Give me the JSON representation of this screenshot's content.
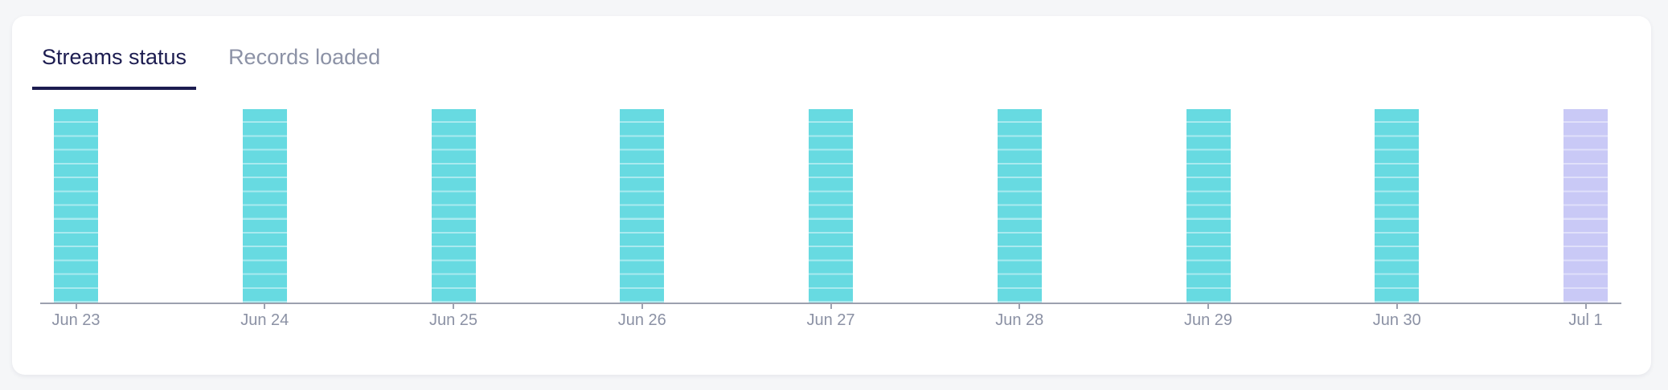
{
  "page": {
    "background_color": "#f5f6f8"
  },
  "tabs": [
    {
      "label": "Streams status",
      "active": true
    },
    {
      "label": "Records loaded",
      "active": false
    }
  ],
  "colors": {
    "active_tab": "#1c1c50",
    "inactive_tab": "#8c92a6",
    "axis": "#9ca1af",
    "label": "#8b91a4",
    "bar_success": "#67dae1",
    "bar_success_divider": "#a9eaef",
    "bar_running": "#c9c9f6",
    "bar_running_divider": "#e0e0fa"
  },
  "chart_data": {
    "type": "bar",
    "title": "",
    "xlabel": "",
    "ylabel": "",
    "categories": [
      "Jun 23",
      "Jun 24",
      "Jun 25",
      "Jun 26",
      "Jun 27",
      "Jun 28",
      "Jun 29",
      "Jun 30",
      "Jul 1"
    ],
    "series": [
      {
        "name": "streams",
        "values": [
          14,
          14,
          14,
          14,
          14,
          14,
          14,
          14,
          14
        ]
      }
    ],
    "statuses": [
      "success",
      "success",
      "success",
      "success",
      "success",
      "success",
      "success",
      "success",
      "running"
    ],
    "segments_per_bar": 14,
    "legend": "none",
    "grid": false,
    "notes": "All bars equal full height; each bar divided into 14 segments by thin lighter lines; Jul 1 bar shown in lavender (running) vs teal (success)."
  }
}
